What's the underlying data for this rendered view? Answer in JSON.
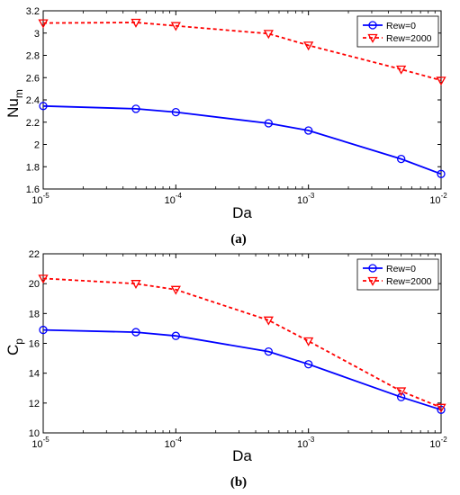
{
  "chart_data": [
    {
      "type": "line",
      "panel_label": "(a)",
      "xlabel": "Da",
      "ylabel": "Nu",
      "ylabel_subscript": "m",
      "x_scale": "log",
      "xlim": [
        1e-05,
        0.01
      ],
      "ylim": [
        1.6,
        3.2
      ],
      "x_ticks": [
        {
          "value": 1e-05,
          "base": "10",
          "exp": "-5"
        },
        {
          "value": 0.0001,
          "base": "10",
          "exp": "-4"
        },
        {
          "value": 0.001,
          "base": "10",
          "exp": "-3"
        },
        {
          "value": 0.01,
          "base": "10",
          "exp": "-2"
        }
      ],
      "y_ticks": [
        {
          "value": 1.6,
          "label": "1.6"
        },
        {
          "value": 1.8,
          "label": "1.8"
        },
        {
          "value": 2.0,
          "label": "2"
        },
        {
          "value": 2.2,
          "label": "2.2"
        },
        {
          "value": 2.4,
          "label": "2.4"
        },
        {
          "value": 2.6,
          "label": "2.6"
        },
        {
          "value": 2.8,
          "label": "2.8"
        },
        {
          "value": 3.0,
          "label": "3"
        },
        {
          "value": 3.2,
          "label": "3.2"
        }
      ],
      "grid": false,
      "legend": "top-right",
      "series": [
        {
          "name": "Rew=0",
          "color": "#0000ff",
          "marker": "circle",
          "line_style": "solid",
          "x": [
            1e-05,
            5e-05,
            0.0001,
            0.0005,
            0.001,
            0.005,
            0.01
          ],
          "y": [
            2.345,
            2.32,
            2.29,
            2.19,
            2.125,
            1.87,
            1.735
          ]
        },
        {
          "name": "Rew=2000",
          "color": "#ff0000",
          "marker": "triangle-down",
          "line_style": "dashed",
          "x": [
            1e-05,
            5e-05,
            0.0001,
            0.0005,
            0.001,
            0.005,
            0.01
          ],
          "y": [
            3.09,
            3.095,
            3.065,
            2.995,
            2.89,
            2.675,
            2.575
          ]
        }
      ]
    },
    {
      "type": "line",
      "panel_label": "(b)",
      "xlabel": "Da",
      "ylabel": "C",
      "ylabel_subscript": "p",
      "x_scale": "log",
      "xlim": [
        1e-05,
        0.01
      ],
      "ylim": [
        10,
        22
      ],
      "x_ticks": [
        {
          "value": 1e-05,
          "base": "10",
          "exp": "-5"
        },
        {
          "value": 0.0001,
          "base": "10",
          "exp": "-4"
        },
        {
          "value": 0.001,
          "base": "10",
          "exp": "-3"
        },
        {
          "value": 0.01,
          "base": "10",
          "exp": "-2"
        }
      ],
      "y_ticks": [
        {
          "value": 10,
          "label": "10"
        },
        {
          "value": 12,
          "label": "12"
        },
        {
          "value": 14,
          "label": "14"
        },
        {
          "value": 16,
          "label": "16"
        },
        {
          "value": 18,
          "label": "18"
        },
        {
          "value": 20,
          "label": "20"
        },
        {
          "value": 22,
          "label": "22"
        }
      ],
      "grid": false,
      "legend": "top-right",
      "series": [
        {
          "name": "Rew=0",
          "color": "#0000ff",
          "marker": "circle",
          "line_style": "solid",
          "x": [
            1e-05,
            5e-05,
            0.0001,
            0.0005,
            0.001,
            0.005,
            0.01
          ],
          "y": [
            16.9,
            16.75,
            16.5,
            15.45,
            14.6,
            12.4,
            11.55
          ]
        },
        {
          "name": "Rew=2000",
          "color": "#ff0000",
          "marker": "triangle-down",
          "line_style": "dashed",
          "x": [
            1e-05,
            5e-05,
            0.0001,
            0.0005,
            0.001,
            0.005,
            0.01
          ],
          "y": [
            20.35,
            20.0,
            19.6,
            17.55,
            16.15,
            12.8,
            11.7
          ]
        }
      ]
    }
  ]
}
